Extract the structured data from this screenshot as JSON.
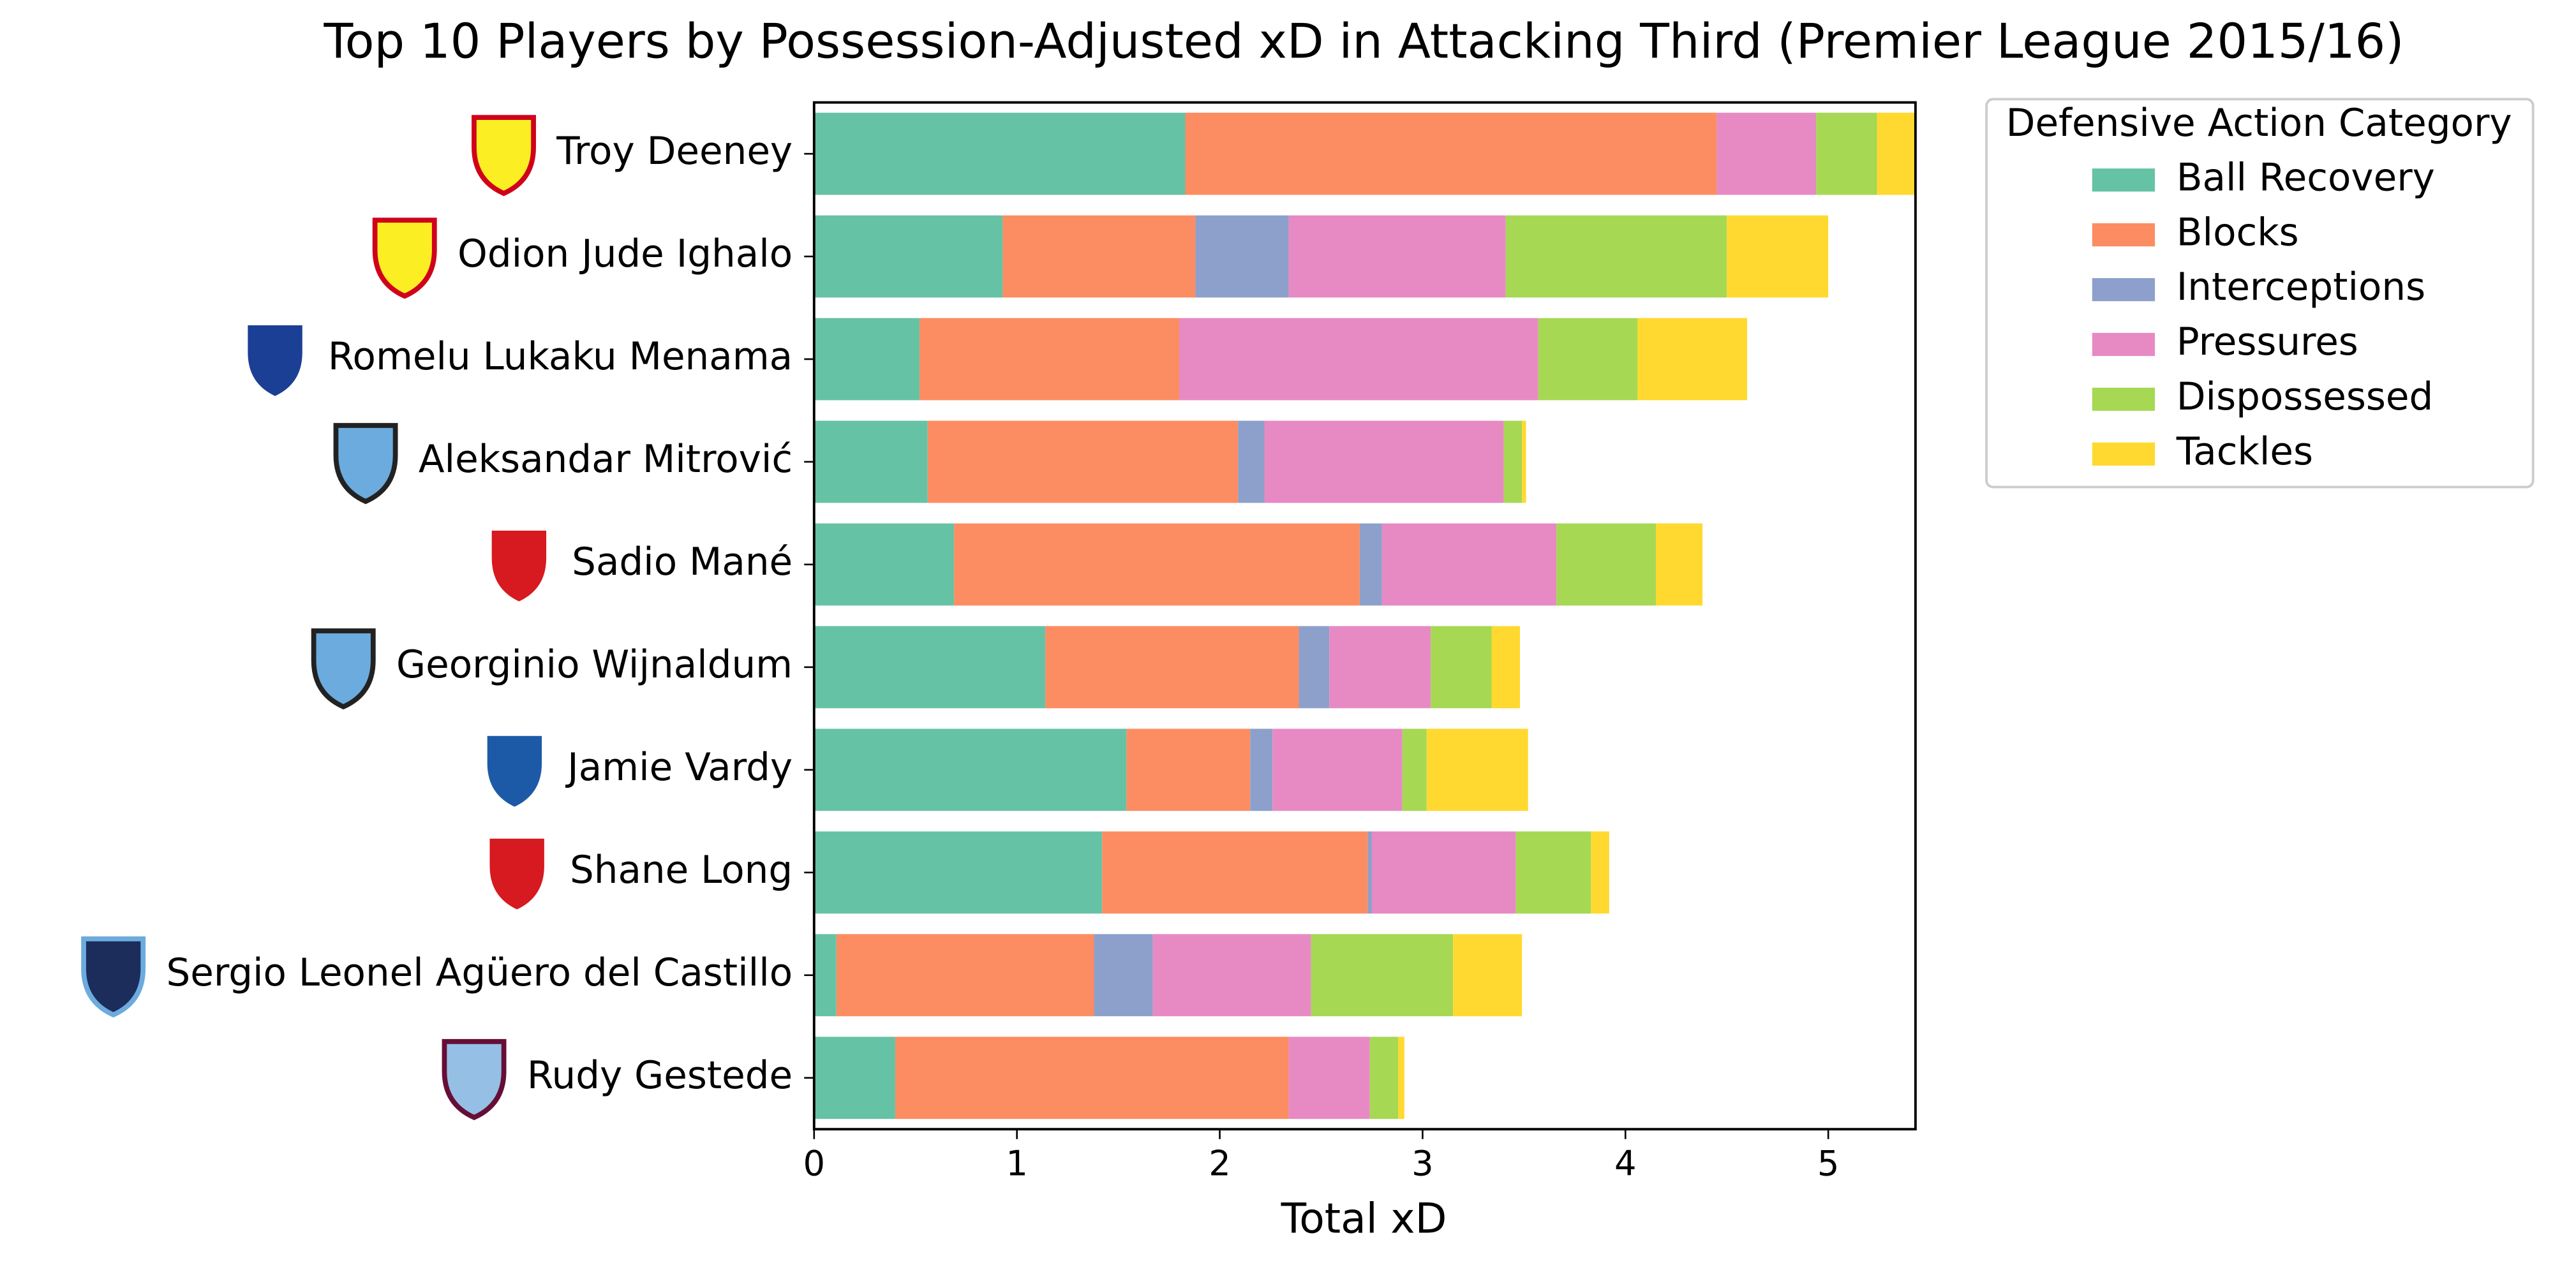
{
  "chart_data": {
    "type": "stacked-barh",
    "title": "Top 10 Players by Possession-Adjusted xD in Attacking Third (Premier League 2015/16)",
    "x_label": "Total xD",
    "categories": [
      "Troy Deeney",
      "Odion Jude Ighalo",
      "Romelu Lukaku Menama",
      "Aleksandar Mitrović",
      "Sadio Mané",
      "Georginio Wijnaldum",
      "Jamie Vardy",
      "Shane Long",
      "Sergio Leonel Agüero del Castillo",
      "Rudy Gestede"
    ],
    "legend_title": "Defensive Action Category",
    "legend_position": "outside upper right",
    "series": [
      {
        "name": "Ball Recovery",
        "color": "#66c2a5",
        "values": [
          1.83,
          0.93,
          0.52,
          0.56,
          0.69,
          1.14,
          1.54,
          1.42,
          0.11,
          0.4
        ]
      },
      {
        "name": "Blocks",
        "color": "#fc8d62",
        "values": [
          2.62,
          0.95,
          1.28,
          1.53,
          2.0,
          1.25,
          0.61,
          1.31,
          1.27,
          1.94
        ]
      },
      {
        "name": "Interceptions",
        "color": "#8da0cb",
        "values": [
          0,
          0.46,
          0,
          0.13,
          0.11,
          0.15,
          0.11,
          0.02,
          0.29,
          0
        ]
      },
      {
        "name": "Pressures",
        "color": "#e78ac3",
        "values": [
          0.49,
          1.07,
          1.77,
          1.18,
          0.86,
          0.5,
          0.64,
          0.71,
          0.78,
          0.4
        ]
      },
      {
        "name": "Dispossessed",
        "color": "#a6d854",
        "values": [
          0.3,
          1.09,
          0.49,
          0.09,
          0.49,
          0.3,
          0.12,
          0.37,
          0.7,
          0.14
        ]
      },
      {
        "name": "Tackles",
        "color": "#ffd92f",
        "values": [
          0.19,
          0.5,
          0.54,
          0.02,
          0.23,
          0.14,
          0.5,
          0.09,
          0.34,
          0.03
        ]
      }
    ],
    "xlim": [
      0,
      5.43
    ],
    "xticks": [
      0,
      1,
      2,
      3,
      4,
      5
    ],
    "grid": false
  }
}
